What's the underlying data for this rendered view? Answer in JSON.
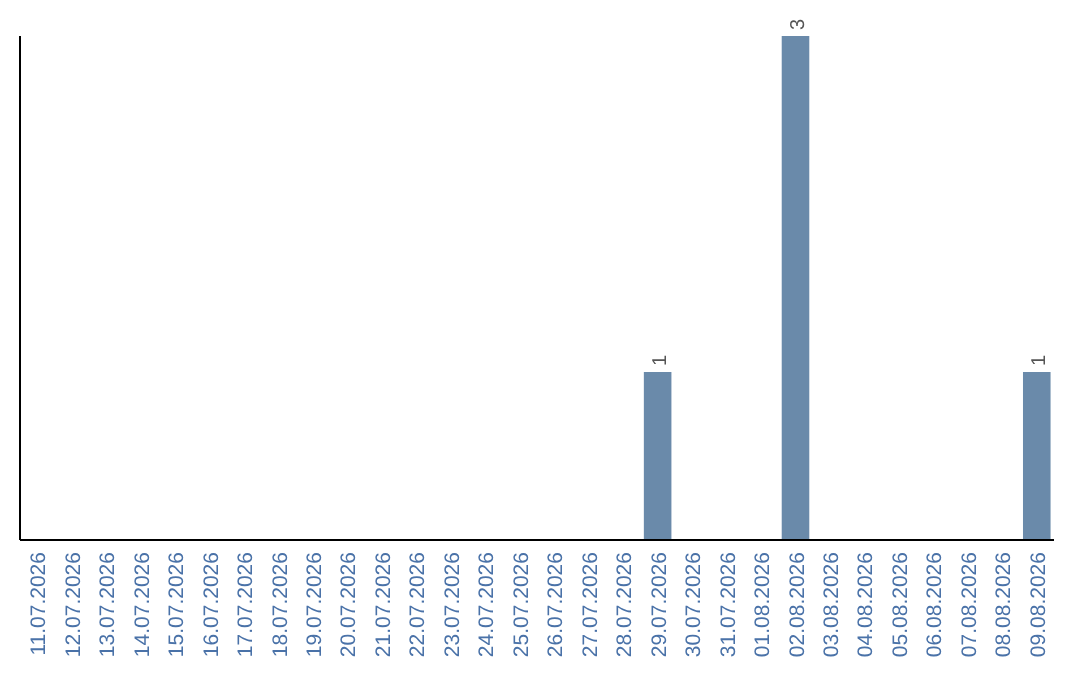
{
  "chart_data": {
    "type": "bar",
    "categories": [
      "11.07.2026",
      "12.07.2026",
      "13.07.2026",
      "14.07.2026",
      "15.07.2026",
      "16.07.2026",
      "17.07.2026",
      "18.07.2026",
      "19.07.2026",
      "20.07.2026",
      "21.07.2026",
      "22.07.2026",
      "23.07.2026",
      "24.07.2026",
      "25.07.2026",
      "26.07.2026",
      "27.07.2026",
      "28.07.2026",
      "29.07.2026",
      "30.07.2026",
      "31.07.2026",
      "01.08.2026",
      "02.08.2026",
      "03.08.2026",
      "04.08.2026",
      "05.08.2026",
      "06.08.2026",
      "07.08.2026",
      "08.08.2026",
      "09.08.2026"
    ],
    "values": [
      null,
      null,
      null,
      null,
      null,
      null,
      null,
      null,
      null,
      null,
      null,
      null,
      null,
      null,
      null,
      null,
      null,
      null,
      1,
      null,
      null,
      null,
      3,
      null,
      null,
      null,
      null,
      null,
      null,
      1
    ],
    "data_labels": true,
    "color": "#6a8aaa",
    "ylim": [
      0,
      3
    ],
    "tick_labels": "x"
  }
}
